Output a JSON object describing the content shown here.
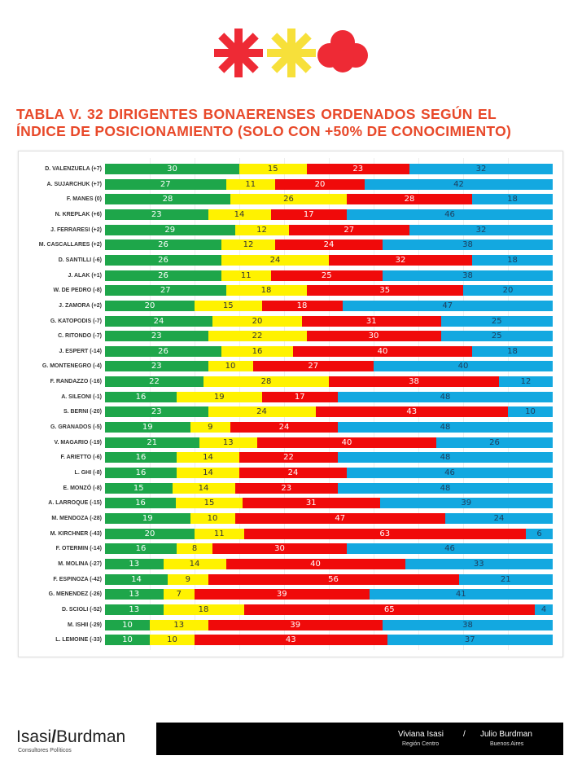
{
  "title_line1": "TABLA V. 32 DIRIGENTES BONAERENSES ORDENADOS SEGÚN EL",
  "title_line2": "ÍNDICE DE POSICIONAMIENTO (SOLO CON +50% DE CONOCIMIENTO)",
  "colors": {
    "green": "#1ea64a",
    "yellow": "#fff200",
    "red": "#f00a0a",
    "blue": "#13a8e0",
    "title": "#e8492a"
  },
  "chart_data": {
    "type": "bar",
    "orientation": "horizontal",
    "stacked": true,
    "xlim": [
      0,
      100
    ],
    "series_colors": [
      "#1ea64a",
      "#fff200",
      "#f00a0a",
      "#13a8e0"
    ],
    "categories": [
      "D. VALENZUELA (+7)",
      "A. SUJARCHUK (+7)",
      "F. MANES (0)",
      "N. KREPLAK (+6)",
      "J. FERRARESI (+2)",
      "M. CASCALLARES (+2)",
      "D. SANTILLI (-6)",
      "J. ALAK (+1)",
      "W. DE PEDRO (-8)",
      "J. ZAMORA (+2)",
      "G. KATOPODIS (-7)",
      "C. RITONDO (-7)",
      "J. ESPERT (-14)",
      "G. MONTENEGRO (-4)",
      "F. RANDAZZO (-16)",
      "A. SILEONI (-1)",
      "S. BERNI (-20)",
      "G. GRANADOS (-5)",
      "V. MAGARIO (-19)",
      "F. ARIETTO (-6)",
      "L. GHI (-8)",
      "E. MONZÓ (-8)",
      "A. LARROQUE (-15)",
      "M. MENDOZA (-28)",
      "M. KIRCHNER (-43)",
      "F. OTERMIN (-14)",
      "M. MOLINA (-27)",
      "F. ESPINOZA (-42)",
      "G. MENENDEZ (-26)",
      "D. SCIOLI (-52)",
      "M. ISHII (-29)",
      "L. LEMOINE (-33)"
    ],
    "values": [
      [
        30,
        15,
        23,
        32
      ],
      [
        27,
        11,
        20,
        42
      ],
      [
        28,
        26,
        28,
        18
      ],
      [
        23,
        14,
        17,
        46
      ],
      [
        29,
        12,
        27,
        32
      ],
      [
        26,
        12,
        24,
        38
      ],
      [
        26,
        24,
        32,
        18
      ],
      [
        26,
        11,
        25,
        38
      ],
      [
        27,
        18,
        35,
        20
      ],
      [
        20,
        15,
        18,
        47
      ],
      [
        24,
        20,
        31,
        25
      ],
      [
        23,
        22,
        30,
        25
      ],
      [
        26,
        16,
        40,
        18
      ],
      [
        23,
        10,
        27,
        40
      ],
      [
        22,
        28,
        38,
        12
      ],
      [
        16,
        19,
        17,
        48
      ],
      [
        23,
        24,
        43,
        10
      ],
      [
        19,
        9,
        24,
        48
      ],
      [
        21,
        13,
        40,
        26
      ],
      [
        16,
        14,
        22,
        48
      ],
      [
        16,
        14,
        24,
        46
      ],
      [
        15,
        14,
        23,
        48
      ],
      [
        16,
        15,
        31,
        39
      ],
      [
        19,
        10,
        47,
        24
      ],
      [
        20,
        11,
        63,
        6
      ],
      [
        16,
        8,
        30,
        46
      ],
      [
        13,
        14,
        40,
        33
      ],
      [
        14,
        9,
        56,
        21
      ],
      [
        13,
        7,
        39,
        41
      ],
      [
        13,
        18,
        65,
        4
      ],
      [
        10,
        13,
        39,
        38
      ],
      [
        10,
        10,
        43,
        37
      ]
    ]
  },
  "footer": {
    "brand_left": "Isasi",
    "brand_slash": "/",
    "brand_right": "Burdman",
    "brand_sub": "Consultores Políticos",
    "name1": "Viviana Isasi",
    "sub1": "Región Centro",
    "separator": "/",
    "name2": "Julio Burdman",
    "sub2": "Buenos Aires"
  }
}
